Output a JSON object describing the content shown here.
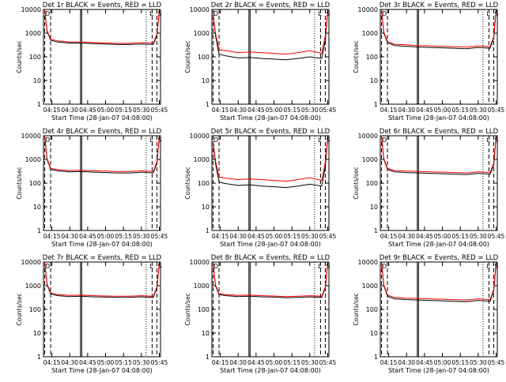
{
  "title_suffix": "BLACK = Events, RED = LLD",
  "xlabel": "Start Time (28-Jan-07 04:08:00)",
  "ylabel": "Counts/sec",
  "x_ticks": [
    "04:15",
    "04:30",
    "04:45",
    "05:00",
    "05:15",
    "05:30",
    "05:45"
  ],
  "y_ticks": [
    "1",
    "10",
    "100",
    "1000",
    "10000"
  ],
  "markers": {
    "left": "D",
    "mid": "E",
    "right1": "L",
    "right2": "S"
  },
  "colors": {
    "events": "#000000",
    "lld": "#ff0000"
  },
  "chart_data": [
    {
      "type": "line",
      "title": "Det 1r",
      "yscale": "log",
      "ylim": [
        1,
        10000
      ],
      "xlim": [
        "04:08",
        "05:46"
      ],
      "x": [
        "04:09",
        "04:11",
        "04:14",
        "04:20",
        "04:30",
        "04:40",
        "04:50",
        "05:00",
        "05:10",
        "05:20",
        "05:30",
        "05:40",
        "05:43",
        "05:45"
      ],
      "series": [
        {
          "name": "BLACK = Events",
          "values": [
            9000,
            1200,
            500,
            420,
            380,
            380,
            360,
            350,
            330,
            330,
            350,
            330,
            800,
            9000
          ]
        },
        {
          "name": "RED = LLD",
          "values": [
            9500,
            1300,
            560,
            470,
            420,
            420,
            400,
            390,
            370,
            370,
            400,
            380,
            900,
            9500
          ]
        }
      ]
    },
    {
      "type": "line",
      "title": "Det 2r",
      "yscale": "log",
      "ylim": [
        1,
        10000
      ],
      "xlim": [
        "04:08",
        "05:46"
      ],
      "x": [
        "04:09",
        "04:11",
        "04:14",
        "04:20",
        "04:30",
        "04:40",
        "04:50",
        "05:00",
        "05:10",
        "05:20",
        "05:30",
        "05:40",
        "05:43",
        "05:45"
      ],
      "series": [
        {
          "name": "BLACK = Events",
          "values": [
            6000,
            800,
            130,
            110,
            90,
            95,
            85,
            80,
            75,
            85,
            100,
            85,
            500,
            9000
          ]
        },
        {
          "name": "RED = LLD",
          "values": [
            7000,
            1000,
            200,
            180,
            150,
            160,
            150,
            140,
            130,
            150,
            180,
            140,
            800,
            9500
          ]
        }
      ]
    },
    {
      "type": "line",
      "title": "Det 3r",
      "yscale": "log",
      "ylim": [
        1,
        10000
      ],
      "xlim": [
        "04:08",
        "05:46"
      ],
      "x": [
        "04:09",
        "04:11",
        "04:14",
        "04:20",
        "04:30",
        "04:40",
        "04:50",
        "05:00",
        "05:10",
        "05:20",
        "05:30",
        "05:40",
        "05:43",
        "05:45"
      ],
      "series": [
        {
          "name": "BLACK = Events",
          "values": [
            9000,
            1000,
            400,
            300,
            280,
            260,
            250,
            240,
            230,
            220,
            250,
            230,
            600,
            9000
          ]
        },
        {
          "name": "RED = LLD",
          "values": [
            9500,
            1100,
            450,
            340,
            320,
            300,
            290,
            280,
            270,
            260,
            290,
            270,
            700,
            9500
          ]
        }
      ]
    },
    {
      "type": "line",
      "title": "Det 4r",
      "yscale": "log",
      "ylim": [
        1,
        10000
      ],
      "xlim": [
        "04:08",
        "05:46"
      ],
      "x": [
        "04:09",
        "04:11",
        "04:14",
        "04:20",
        "04:30",
        "04:40",
        "04:50",
        "05:00",
        "05:10",
        "05:20",
        "05:30",
        "05:40",
        "05:43",
        "05:45"
      ],
      "series": [
        {
          "name": "BLACK = Events",
          "values": [
            9000,
            1000,
            380,
            330,
            300,
            310,
            290,
            280,
            270,
            270,
            290,
            270,
            700,
            9000
          ]
        },
        {
          "name": "RED = LLD",
          "values": [
            9500,
            1100,
            420,
            370,
            340,
            350,
            330,
            320,
            310,
            310,
            330,
            310,
            800,
            9500
          ]
        }
      ]
    },
    {
      "type": "line",
      "title": "Det 5r",
      "yscale": "log",
      "ylim": [
        1,
        10000
      ],
      "xlim": [
        "04:08",
        "05:46"
      ],
      "x": [
        "04:09",
        "04:11",
        "04:14",
        "04:20",
        "04:30",
        "04:40",
        "04:50",
        "05:00",
        "05:10",
        "05:20",
        "05:30",
        "05:40",
        "05:43",
        "05:45"
      ],
      "series": [
        {
          "name": "BLACK = Events",
          "values": [
            5000,
            700,
            110,
            95,
            80,
            85,
            75,
            70,
            65,
            75,
            90,
            75,
            500,
            9000
          ]
        },
        {
          "name": "RED = LLD",
          "values": [
            6000,
            900,
            180,
            160,
            140,
            150,
            140,
            130,
            120,
            140,
            170,
            130,
            800,
            9500
          ]
        }
      ]
    },
    {
      "type": "line",
      "title": "Det 6r",
      "yscale": "log",
      "ylim": [
        1,
        10000
      ],
      "xlim": [
        "04:08",
        "05:46"
      ],
      "x": [
        "04:09",
        "04:11",
        "04:14",
        "04:20",
        "04:30",
        "04:40",
        "04:50",
        "05:00",
        "05:10",
        "05:20",
        "05:30",
        "05:40",
        "05:43",
        "05:45"
      ],
      "series": [
        {
          "name": "BLACK = Events",
          "values": [
            9000,
            1000,
            380,
            300,
            280,
            270,
            260,
            250,
            240,
            230,
            260,
            240,
            600,
            9000
          ]
        },
        {
          "name": "RED = LLD",
          "values": [
            9500,
            1100,
            420,
            340,
            320,
            310,
            300,
            290,
            280,
            270,
            300,
            280,
            700,
            9500
          ]
        }
      ]
    },
    {
      "type": "line",
      "title": "Det 7r",
      "yscale": "log",
      "ylim": [
        1,
        10000
      ],
      "xlim": [
        "04:08",
        "05:46"
      ],
      "x": [
        "04:09",
        "04:11",
        "04:14",
        "04:20",
        "04:30",
        "04:40",
        "04:50",
        "05:00",
        "05:10",
        "05:20",
        "05:30",
        "05:40",
        "05:43",
        "05:45"
      ],
      "series": [
        {
          "name": "BLACK = Events",
          "values": [
            9000,
            1100,
            450,
            380,
            350,
            360,
            340,
            330,
            320,
            320,
            340,
            320,
            800,
            9000
          ]
        },
        {
          "name": "RED = LLD",
          "values": [
            9500,
            1200,
            500,
            420,
            390,
            400,
            380,
            370,
            360,
            360,
            380,
            360,
            900,
            9500
          ]
        }
      ]
    },
    {
      "type": "line",
      "title": "Det 8r",
      "yscale": "log",
      "ylim": [
        1,
        10000
      ],
      "xlim": [
        "04:08",
        "05:46"
      ],
      "x": [
        "04:09",
        "04:11",
        "04:14",
        "04:20",
        "04:30",
        "04:40",
        "04:50",
        "05:00",
        "05:10",
        "05:20",
        "05:30",
        "05:40",
        "05:43",
        "05:45"
      ],
      "series": [
        {
          "name": "BLACK = Events",
          "values": [
            9000,
            1000,
            420,
            380,
            350,
            360,
            340,
            330,
            310,
            320,
            340,
            320,
            800,
            9000
          ]
        },
        {
          "name": "RED = LLD",
          "values": [
            9500,
            1100,
            460,
            420,
            390,
            400,
            380,
            370,
            350,
            360,
            380,
            360,
            900,
            9500
          ]
        }
      ]
    },
    {
      "type": "line",
      "title": "Det 9r",
      "yscale": "log",
      "ylim": [
        1,
        10000
      ],
      "xlim": [
        "04:08",
        "05:46"
      ],
      "x": [
        "04:09",
        "04:11",
        "04:14",
        "04:20",
        "04:30",
        "04:40",
        "04:50",
        "05:00",
        "05:10",
        "05:20",
        "05:30",
        "05:40",
        "05:43",
        "05:45"
      ],
      "series": [
        {
          "name": "BLACK = Events",
          "values": [
            9000,
            1000,
            360,
            280,
            260,
            250,
            240,
            230,
            220,
            210,
            240,
            220,
            600,
            9000
          ]
        },
        {
          "name": "RED = LLD",
          "values": [
            9500,
            1100,
            400,
            320,
            300,
            290,
            280,
            270,
            260,
            250,
            280,
            260,
            700,
            9500
          ]
        }
      ]
    }
  ]
}
